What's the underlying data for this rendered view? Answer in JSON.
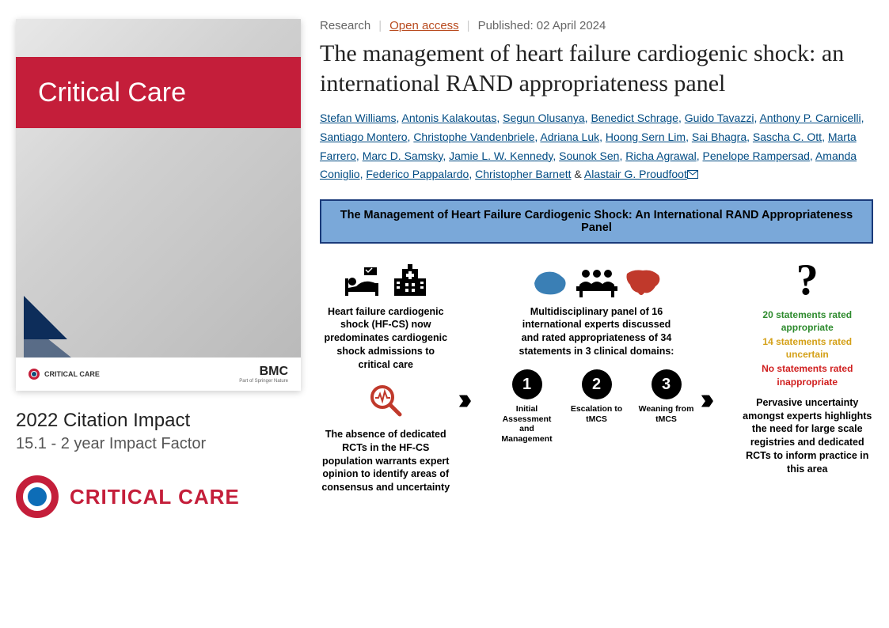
{
  "cover": {
    "journal_title": "Critical Care",
    "footer_left": "CRITICAL CARE",
    "bmc": "BMC",
    "bmc_sub": "Part of Springer Nature",
    "band_color": "#c41e3a",
    "triangle_color": "#0d2d5a"
  },
  "impact": {
    "title": "2022 Citation Impact",
    "value": "15.1 - 2 year Impact Factor"
  },
  "brand": {
    "text": "CRITICAL CARE",
    "ring_color": "#c41e3a",
    "dot_color": "#0d6db7"
  },
  "meta": {
    "category": "Research",
    "open_access": "Open access",
    "published": "Published: 02 April 2024"
  },
  "title": "The management of heart failure cardiogenic shock: an international RAND appropriateness panel",
  "authors": [
    "Stefan Williams",
    "Antonis Kalakoutas",
    "Segun Olusanya",
    "Benedict Schrage",
    "Guido Tavazzi",
    "Anthony P. Carnicelli",
    "Santiago Montero",
    "Christophe Vandenbriele",
    "Adriana Luk",
    "Hoong Sern Lim",
    "Sai Bhagra",
    "Sascha C. Ott",
    "Marta Farrero",
    "Marc D. Samsky",
    "Jamie L. W. Kennedy",
    "Sounok Sen",
    "Richa Agrawal",
    "Penelope Rampersad",
    "Amanda Coniglio",
    "Federico Pappalardo",
    "Christopher Barnett",
    "Alastair G. Proudfoot"
  ],
  "banner": {
    "text": "The Management of Heart Failure Cardiogenic Shock: An International RAND Appropriateness Panel",
    "bg": "#7aa8d9",
    "border": "#1a3a7a"
  },
  "infographic": {
    "col1": {
      "text1": "Heart failure cardiogenic shock (HF-CS) now predominates cardiogenic shock admissions to critical care",
      "text2": "The absence of dedicated RCTs in the HF-CS population warrants expert opinion to identify areas of consensus and uncertainty",
      "magnifier_color": "#c0392b"
    },
    "col2": {
      "text": "Multidisciplinary panel of 16 international experts discussed and rated appropriateness of 34 statements in 3 clinical domains:",
      "map_left_color": "#3a7fb5",
      "map_right_color": "#c0392b",
      "domains": [
        {
          "n": "1",
          "label": "Initial Assessment and Management"
        },
        {
          "n": "2",
          "label": "Escalation to tMCS"
        },
        {
          "n": "3",
          "label": "Weaning from tMCS"
        }
      ]
    },
    "col3": {
      "qmark": "?",
      "statements": [
        {
          "text": "20 statements rated appropriate",
          "color": "#2e8b2e"
        },
        {
          "text": "14 statements rated uncertain",
          "color": "#d4a017"
        },
        {
          "text": "No statements rated inappropriate",
          "color": "#d01f1f"
        }
      ],
      "conclusion": "Pervasive uncertainty amongst experts highlights the need for large scale registries and dedicated RCTs to inform practice in this area"
    }
  }
}
